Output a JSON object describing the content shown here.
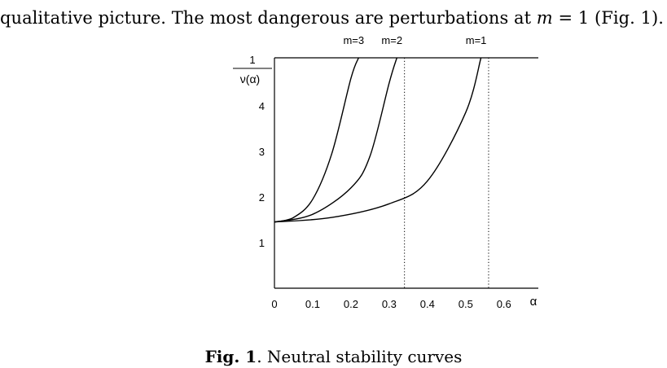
{
  "text": {
    "intro_before": "qualitative picture. The most dangerous are perturbations at ",
    "intro_math": "m",
    "intro_after": " = 1 (Fig. 1)."
  },
  "figure": {
    "caption_label": "Fig. 1",
    "caption_text": ". Neutral stability curves"
  },
  "chart_data": {
    "type": "line",
    "title": "",
    "xlabel": "α",
    "ylabel_num": "1",
    "ylabel_den": "ν(α)",
    "xlim": [
      0,
      0.69
    ],
    "ylim": [
      0,
      5.05
    ],
    "xticks": [
      "0",
      "0.1",
      "0.2",
      "0.3",
      "0.4",
      "0.5",
      "0.6"
    ],
    "yticks": [
      "1",
      "2",
      "3",
      "4"
    ],
    "series": [
      {
        "name": "m=3",
        "x": [
          0,
          0.05,
          0.1,
          0.15,
          0.2,
          0.22
        ],
        "y": [
          1.45,
          1.55,
          1.95,
          2.95,
          4.6,
          5.05
        ]
      },
      {
        "name": "m=2",
        "x": [
          0,
          0.1,
          0.2,
          0.25,
          0.3,
          0.32
        ],
        "y": [
          1.45,
          1.62,
          2.2,
          2.9,
          4.5,
          5.05
        ]
      },
      {
        "name": "m=1",
        "x": [
          0,
          0.15,
          0.3,
          0.4,
          0.5,
          0.54
        ],
        "y": [
          1.45,
          1.55,
          1.85,
          2.35,
          3.85,
          5.05
        ]
      }
    ],
    "vlines": [
      0.34,
      0.56
    ]
  }
}
